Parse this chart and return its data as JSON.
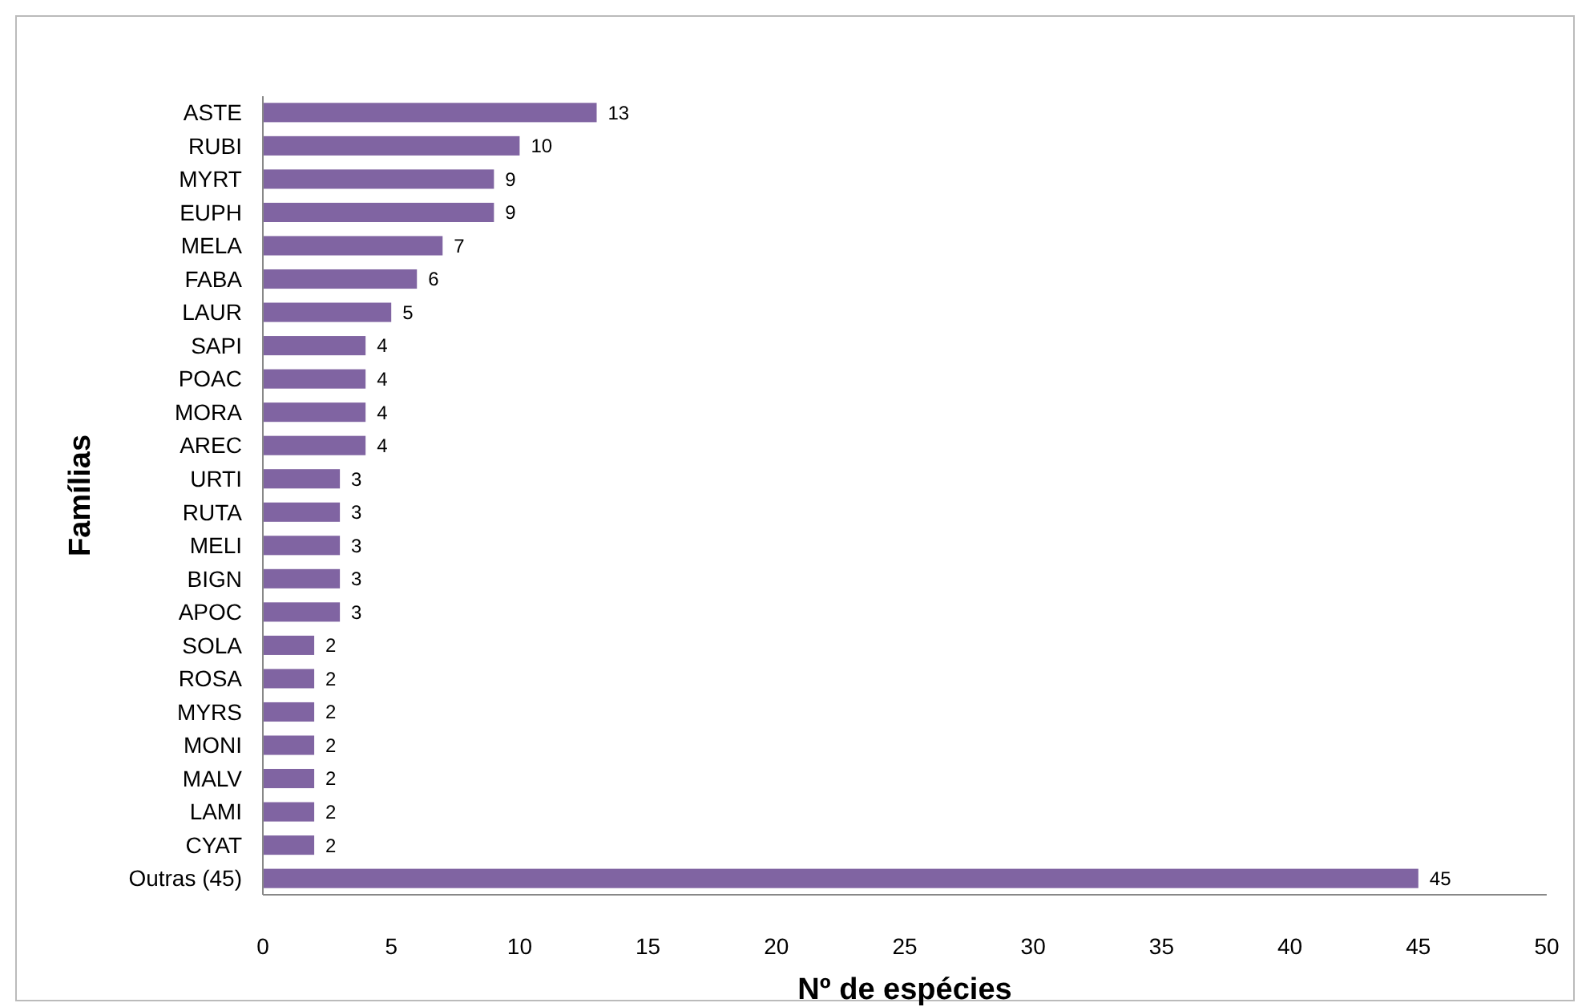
{
  "chart_data": {
    "type": "bar",
    "orientation": "horizontal",
    "xlabel": "Nº de espécies",
    "ylabel": "Famílias",
    "categories": [
      "ASTE",
      "RUBI",
      "MYRT",
      "EUPH",
      "MELA",
      "FABA",
      "LAUR",
      "SAPI",
      "POAC",
      "MORA",
      "AREC",
      "URTI",
      "RUTA",
      "MELI",
      "BIGN",
      "APOC",
      "SOLA",
      "ROSA",
      "MYRS",
      "MONI",
      "MALV",
      "LAMI",
      "CYAT",
      "Outras (45)"
    ],
    "values": [
      13,
      10,
      9,
      9,
      7,
      6,
      5,
      4,
      4,
      4,
      4,
      3,
      3,
      3,
      3,
      3,
      2,
      2,
      2,
      2,
      2,
      2,
      2,
      45
    ],
    "color": "#8064a2",
    "xlim": [
      0,
      50
    ],
    "xticks": [
      0,
      5,
      10,
      15,
      20,
      25,
      30,
      35,
      40,
      45,
      50
    ],
    "grid": false,
    "data_labels": true
  }
}
